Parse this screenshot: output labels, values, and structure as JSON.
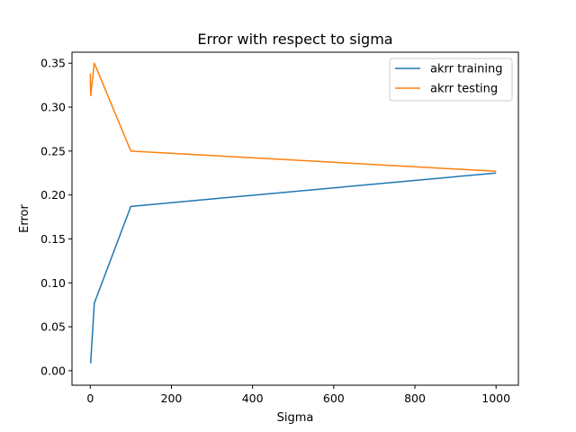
{
  "chart_data": {
    "type": "line",
    "title": "Error with respect to sigma",
    "xlabel": "Sigma",
    "ylabel": "Error",
    "xlim": [
      -45,
      1055
    ],
    "ylim": [
      -0.0165,
      0.3625
    ],
    "xticks": [
      0,
      200,
      400,
      600,
      800,
      1000
    ],
    "yticks": [
      0.0,
      0.05,
      0.1,
      0.15,
      0.2,
      0.25,
      0.3,
      0.35
    ],
    "ytick_labels": [
      "0.00",
      "0.05",
      "0.10",
      "0.15",
      "0.20",
      "0.25",
      "0.30",
      "0.35"
    ],
    "legend_position": "top-right",
    "grid": false,
    "series": [
      {
        "name": "akrr training",
        "color": "#1f77b4",
        "x": [
          0.001,
          0.01,
          0.1,
          1,
          10,
          100,
          1000
        ],
        "y": [
          0.009,
          0.009,
          0.009,
          0.009,
          0.077,
          0.187,
          0.225
        ]
      },
      {
        "name": "akrr testing",
        "color": "#ff7f0e",
        "x": [
          0.001,
          0.01,
          0.1,
          1,
          10,
          100,
          1000
        ],
        "y": [
          0.338,
          0.338,
          0.338,
          0.313,
          0.35,
          0.25,
          0.227
        ]
      }
    ]
  }
}
